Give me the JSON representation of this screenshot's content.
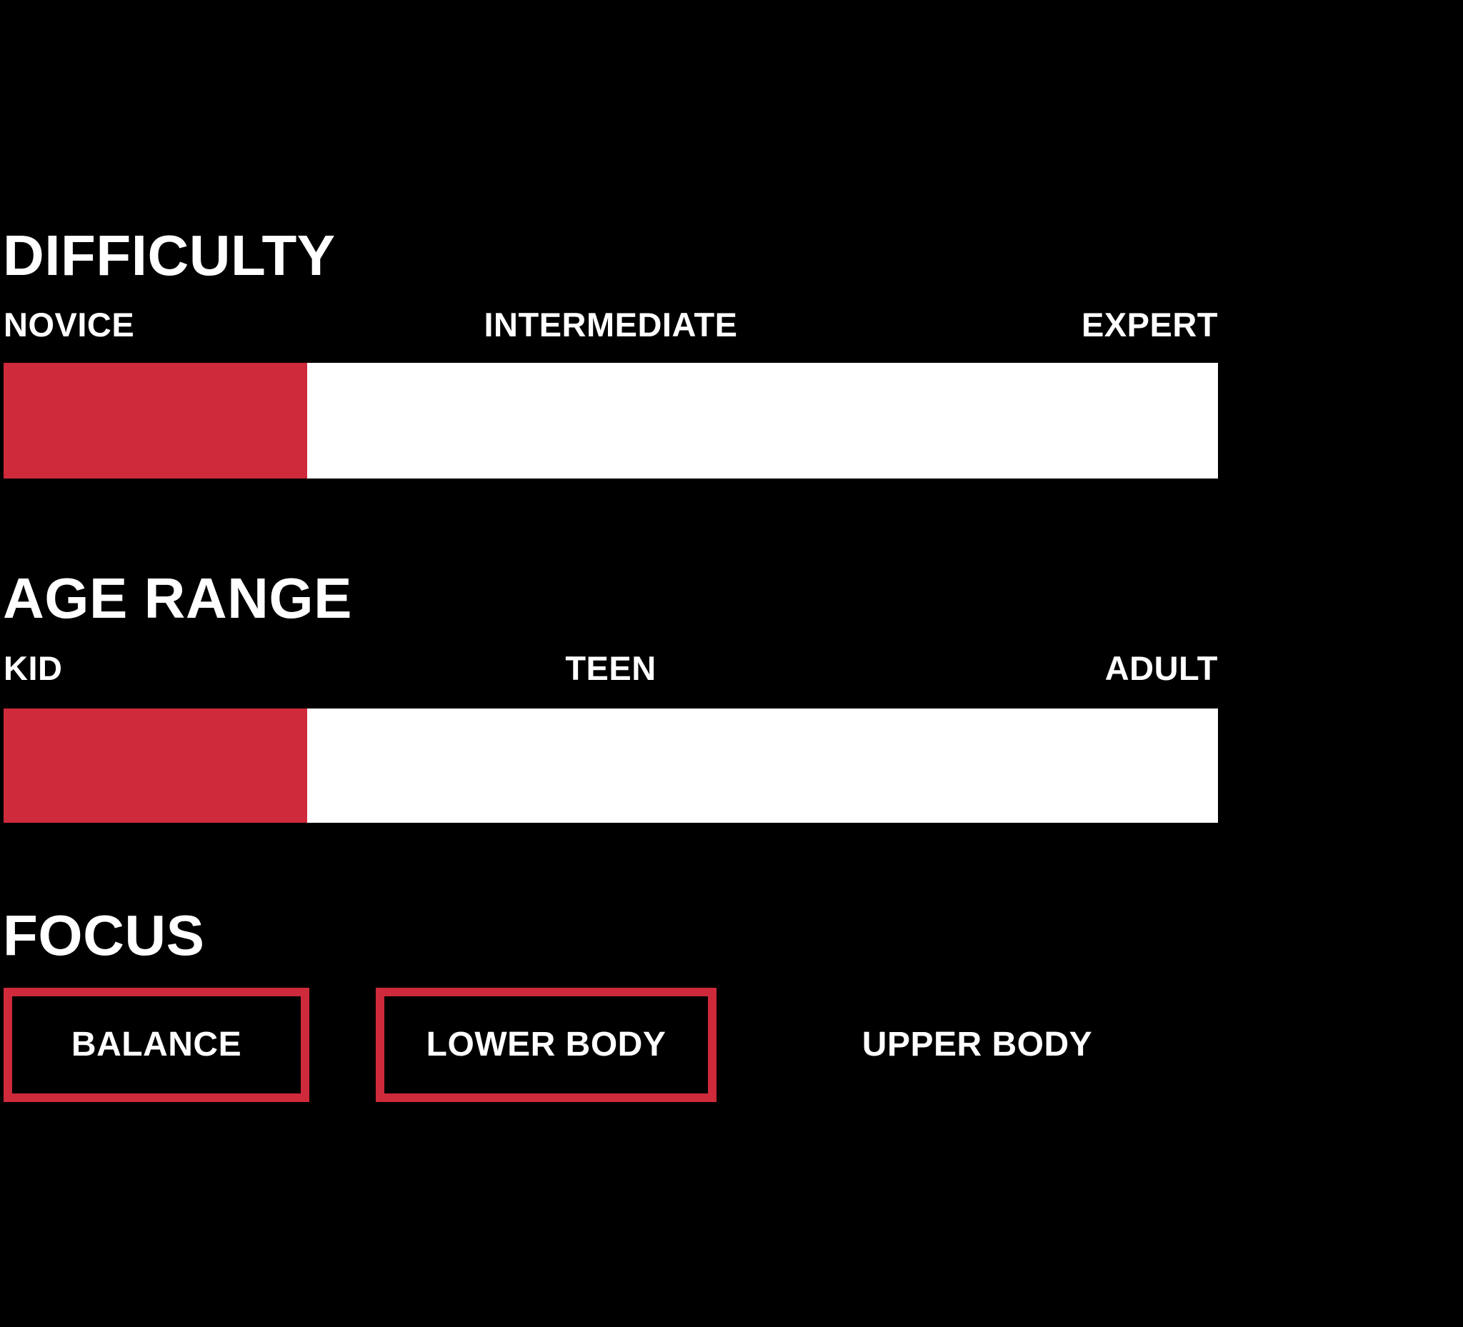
{
  "colors": {
    "accent_red": "#CE2A3B",
    "track_white": "#FFFFFF",
    "background": "#000000",
    "text": "#FFFFFF"
  },
  "sections": {
    "difficulty": {
      "title": "DIFFICULTY",
      "scale_labels": {
        "low": "NOVICE",
        "mid": "INTERMEDIATE",
        "high": "EXPERT"
      },
      "fill_percent": 25
    },
    "age_range": {
      "title": "AGE RANGE",
      "scale_labels": {
        "low": "KID",
        "mid": "TEEN",
        "high": "ADULT"
      },
      "fill_percent": 25
    },
    "focus": {
      "title": "FOCUS",
      "options": [
        {
          "label": "BALANCE",
          "selected": true
        },
        {
          "label": "LOWER BODY",
          "selected": true
        },
        {
          "label": "UPPER BODY",
          "selected": false
        }
      ]
    }
  }
}
